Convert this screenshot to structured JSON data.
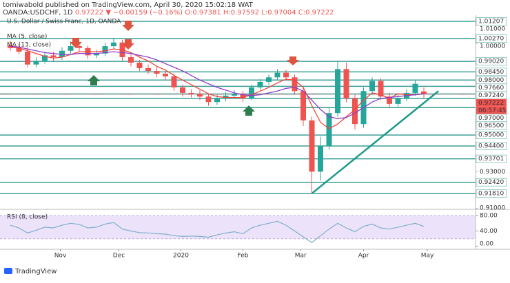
{
  "header": {
    "line1": "tomiwabold published on TradingView.com, April 30, 2020 15:02:18 WAT",
    "symbol": "OANDA:USDCHF, 1D",
    "change": "0.97222 ▼ −0.00159 (−0.16%)",
    "ohlc": "O:0.97381 H:0.97592 L:0.97004 C:0.97222"
  },
  "footer": "TradingView",
  "chart_data": {
    "type": "candlestick",
    "title": "U.S. Dollar / Swiss Franc, 1D, OANDA",
    "up_color": "#26a69a",
    "down_color": "#ef5350",
    "xlim": [
      -1.2,
      54
    ],
    "ylim": [
      0.91094,
      1.01545
    ],
    "xticks": [
      {
        "value": 5.8,
        "label": "Nov"
      },
      {
        "value": 12.6,
        "label": "Dec"
      },
      {
        "value": 19.8,
        "label": "2020"
      },
      {
        "value": 27,
        "label": "Feb"
      },
      {
        "value": 33.7,
        "label": "Mar"
      },
      {
        "value": 41,
        "label": "Apr"
      },
      {
        "value": 48.4,
        "label": "May"
      }
    ],
    "yticks": [
      {
        "value": 1.01,
        "label": "1.01000"
      },
      {
        "value": 1,
        "label": "1.00000"
      },
      {
        "value": 0.93,
        "label": "0.93000"
      },
      {
        "value": 0.91,
        "label": "0.91000"
      }
    ],
    "levels": [
      1.01207,
      {
        "value": 1.0027,
        "label": "1.00270"
      },
      {
        "value": 0.9902,
        "label": "0.99020"
      },
      {
        "value": 0.9845,
        "label": "0.98450"
      },
      {
        "value": 0.98,
        "label": "0.98000"
      },
      {
        "value": 0.9766,
        "label": "0.97660"
      },
      {
        "value": 0.9724,
        "label": "0.97240"
      },
      {
        "value": 0.97,
        "label": "0.97000"
      },
      {
        "value": 0.965,
        "label": "0.96500"
      },
      {
        "value": 0.95,
        "label": "0.95000"
      },
      {
        "value": 0.944,
        "label": "0.94400"
      },
      {
        "value": 0.93701,
        "label": "0.93701"
      },
      {
        "value": 0.9242,
        "label": "0.92420"
      },
      {
        "value": 0.9181,
        "label": "0.91810"
      }
    ],
    "level_color": "#3d9f97",
    "last_price": 0.97222,
    "countdown": "06:57:45",
    "open": [
      0.999,
      0.9975,
      0.9955,
      0.9885,
      0.9905,
      0.9935,
      0.9925,
      0.996,
      0.9985,
      0.9975,
      0.9935,
      0.9945,
      0.9985,
      1.0005,
      0.9925,
      0.9895,
      0.9865,
      0.985,
      0.9835,
      0.982,
      0.976,
      0.973,
      0.9725,
      0.971,
      0.968,
      0.97,
      0.9715,
      0.9725,
      0.97,
      0.976,
      0.979,
      0.9815,
      0.984,
      0.9815,
      0.974,
      0.958,
      0.93,
      0.944,
      0.962,
      0.986,
      0.97,
      0.956,
      0.974,
      0.9795,
      0.971,
      0.967,
      0.97,
      0.973,
      0.97381
    ],
    "high": [
      1.0015,
      1.0,
      0.998,
      0.9925,
      0.9955,
      0.9955,
      0.998,
      1.001,
      1.0005,
      0.999,
      0.9965,
      1.0005,
      1.0025,
      1.002,
      0.994,
      0.991,
      0.9885,
      0.987,
      0.985,
      0.9835,
      0.9775,
      0.975,
      0.9745,
      0.9725,
      0.972,
      0.9735,
      0.9745,
      0.974,
      0.9775,
      0.9805,
      0.983,
      0.986,
      0.9855,
      0.983,
      0.9755,
      0.96,
      0.949,
      0.965,
      0.9905,
      0.9895,
      0.972,
      0.976,
      0.9815,
      0.981,
      0.973,
      0.972,
      0.975,
      0.98,
      0.97592
    ],
    "low": [
      0.996,
      0.994,
      0.987,
      0.987,
      0.989,
      0.9905,
      0.991,
      0.9945,
      0.9955,
      0.9915,
      0.992,
      0.993,
      0.997,
      0.9905,
      0.9875,
      0.985,
      0.9835,
      0.9815,
      0.98,
      0.974,
      0.971,
      0.9705,
      0.969,
      0.966,
      0.9665,
      0.9685,
      0.97,
      0.968,
      0.969,
      0.9745,
      0.9775,
      0.98,
      0.98,
      0.972,
      0.955,
      0.9181,
      0.925,
      0.942,
      0.96,
      0.968,
      0.953,
      0.954,
      0.972,
      0.969,
      0.965,
      0.9655,
      0.9685,
      0.9715,
      0.97004
    ],
    "close": [
      0.9975,
      0.9955,
      0.9885,
      0.9905,
      0.9935,
      0.9925,
      0.996,
      0.9985,
      0.9975,
      0.9935,
      0.9945,
      0.9985,
      1.0005,
      0.9925,
      0.9895,
      0.9865,
      0.985,
      0.9835,
      0.982,
      0.976,
      0.973,
      0.9725,
      0.971,
      0.968,
      0.97,
      0.9715,
      0.9725,
      0.97,
      0.976,
      0.979,
      0.9815,
      0.984,
      0.9815,
      0.974,
      0.958,
      0.93,
      0.944,
      0.962,
      0.986,
      0.97,
      0.956,
      0.974,
      0.9795,
      0.971,
      0.967,
      0.97,
      0.973,
      0.978,
      0.97222
    ],
    "ma": [
      {
        "name": "MA (5, close)",
        "color": "#f0453a",
        "values": [
          0.998,
          0.9975,
          0.996,
          0.9945,
          0.993,
          0.992,
          0.9925,
          0.994,
          0.9955,
          0.9955,
          0.9955,
          0.996,
          0.997,
          0.9965,
          0.995,
          0.9925,
          0.9905,
          0.9875,
          0.9855,
          0.9825,
          0.98,
          0.9775,
          0.975,
          0.9725,
          0.971,
          0.9705,
          0.9705,
          0.9705,
          0.972,
          0.974,
          0.976,
          0.9785,
          0.9805,
          0.98,
          0.976,
          0.966,
          0.957,
          0.9535,
          0.956,
          0.96,
          0.964,
          0.969,
          0.973,
          0.972,
          0.97,
          0.9725,
          0.972,
          0.972,
          0.9725
        ]
      },
      {
        "name": "MA (13, close)",
        "color": "#8e3ccb",
        "values": [
          0.9985,
          0.998,
          0.997,
          0.996,
          0.995,
          0.9945,
          0.994,
          0.994,
          0.9945,
          0.9945,
          0.9945,
          0.995,
          0.9955,
          0.995,
          0.9945,
          0.9935,
          0.9925,
          0.991,
          0.989,
          0.987,
          0.985,
          0.9825,
          0.98,
          0.978,
          0.976,
          0.9745,
          0.973,
          0.972,
          0.9715,
          0.972,
          0.973,
          0.974,
          0.9755,
          0.976,
          0.974,
          0.969,
          0.964,
          0.96,
          0.959,
          0.9595,
          0.962,
          0.965,
          0.968,
          0.97,
          0.9705,
          0.971,
          0.9715,
          0.972,
          0.9725
        ]
      }
    ],
    "trendline": {
      "x": [
        35,
        49.7
      ],
      "y": [
        0.9181,
        0.974
      ],
      "color": "#1f9a8a"
    },
    "rsi": {
      "name": "RSI (8, close)",
      "color": "#7eaec8",
      "ylim": [
        0,
        88.9
      ],
      "band": [
        20,
        80
      ],
      "yticks": [
        {
          "value": 80,
          "label": "80.00"
        },
        {
          "value": 40,
          "label": "40.00"
        },
        {
          "value": 0,
          "label": "0.00"
        }
      ],
      "values": [
        55,
        48,
        35,
        42,
        50,
        48,
        55,
        60,
        57,
        48,
        50,
        58,
        62,
        45,
        40,
        36,
        35,
        33,
        32,
        28,
        26,
        27,
        26,
        24,
        30,
        35,
        38,
        33,
        48,
        55,
        60,
        65,
        55,
        40,
        25,
        10,
        28,
        45,
        60,
        48,
        38,
        52,
        58,
        48,
        45,
        50,
        55,
        60,
        52
      ]
    }
  }
}
